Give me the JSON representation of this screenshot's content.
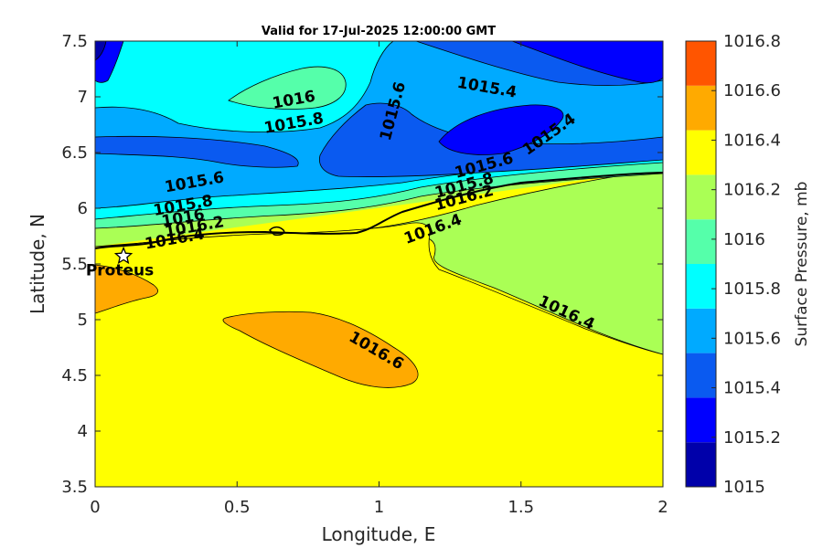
{
  "chart_data": {
    "type": "contour",
    "title": "Valid for 17-Jul-2025 12:00:00 GMT",
    "xlabel": "Longitude, E",
    "ylabel": "Latitude, N",
    "xlim": [
      0,
      2
    ],
    "ylim": [
      3.5,
      7.5
    ],
    "x_ticks": [
      0,
      0.5,
      1,
      1.5,
      2
    ],
    "x_tick_labels": [
      "0",
      "0.5",
      "1",
      "1.5",
      "2"
    ],
    "y_ticks": [
      3.5,
      4,
      4.5,
      5,
      5.5,
      6,
      6.5,
      7,
      7.5
    ],
    "y_tick_labels": [
      "3.5",
      "4",
      "4.5",
      "5",
      "5.5",
      "6",
      "6.5",
      "7",
      "7.5"
    ],
    "colorbar": {
      "label": "Surface Pressure, mb",
      "levels": [
        1015,
        1015.2,
        1015.4,
        1015.6,
        1015.8,
        1016,
        1016.2,
        1016.4,
        1016.6,
        1016.8
      ],
      "level_labels": [
        "1015",
        "1015.2",
        "1015.4",
        "1015.6",
        "1015.8",
        "1016",
        "1016.2",
        "1016.4",
        "1016.6",
        "1016.8"
      ],
      "colors": [
        "#0000aa",
        "#0000ff",
        "#0a5af0",
        "#00aaff",
        "#00ffff",
        "#55ffaa",
        "#aaff55",
        "#ffff00",
        "#ffaa00",
        "#ff5500"
      ]
    },
    "contour_labels": [
      {
        "text": "1016",
        "lon": 0.7,
        "lat": 6.97
      },
      {
        "text": "1015.8",
        "lon": 0.7,
        "lat": 6.76
      },
      {
        "text": "1015.6",
        "lon": 1.05,
        "lat": 6.87
      },
      {
        "text": "1015.4",
        "lon": 1.38,
        "lat": 7.08
      },
      {
        "text": "1015.4",
        "lon": 1.6,
        "lat": 6.66
      },
      {
        "text": "1015.6",
        "lon": 1.37,
        "lat": 6.38
      },
      {
        "text": "1015.8",
        "lon": 1.3,
        "lat": 6.2
      },
      {
        "text": "1016.2",
        "lon": 1.3,
        "lat": 6.09
      },
      {
        "text": "1016.4",
        "lon": 1.19,
        "lat": 5.81
      },
      {
        "text": "1015.6",
        "lon": 0.35,
        "lat": 6.23
      },
      {
        "text": "1015.8",
        "lon": 0.31,
        "lat": 6.02
      },
      {
        "text": "1016",
        "lon": 0.31,
        "lat": 5.91
      },
      {
        "text": "1016.2",
        "lon": 0.35,
        "lat": 5.83
      },
      {
        "text": "1016.4",
        "lon": 0.28,
        "lat": 5.72
      },
      {
        "text": "1016.6",
        "lon": 0.99,
        "lat": 4.72
      },
      {
        "text": "1016.4",
        "lon": 1.66,
        "lat": 5.06
      }
    ],
    "station": {
      "name": "Proteus",
      "lon": 0.1,
      "lat": 5.57,
      "marker": "star"
    },
    "coastline_color": "#000000"
  }
}
